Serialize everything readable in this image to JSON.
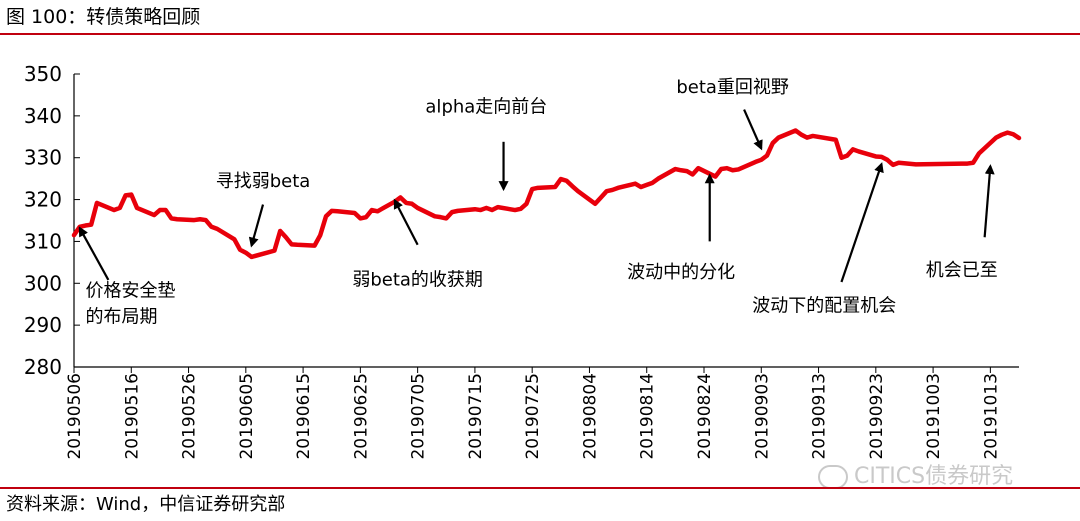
{
  "figure": {
    "title": "图 100：转债策略回顾",
    "source": "资料来源：Wind，中信证券研究部",
    "watermark": "CITICS债券研究"
  },
  "colors": {
    "line": "#e8000b",
    "rule": "#c0000f",
    "axis": "#000000"
  },
  "chart_data": {
    "type": "line",
    "title": "",
    "xlabel": "",
    "ylabel": "",
    "ylim": [
      280,
      350
    ],
    "yticks": [
      280,
      290,
      300,
      310,
      320,
      330,
      340,
      350
    ],
    "xtick_labels": [
      "20190506",
      "20190516",
      "20190526",
      "20190605",
      "20190615",
      "20190625",
      "20190705",
      "20190715",
      "20190725",
      "20190804",
      "20190814",
      "20190824",
      "20190903",
      "20190913",
      "20190923",
      "20191003",
      "20191013"
    ],
    "x_start": "2019-05-06",
    "x_end": "2019-10-18",
    "grid": false,
    "legend": "none",
    "series": [
      {
        "name": "",
        "points": [
          [
            "2019-05-06",
            311.5
          ],
          [
            "2019-05-07",
            313.5
          ],
          [
            "2019-05-08",
            313.8
          ],
          [
            "2019-05-09",
            314.0
          ],
          [
            "2019-05-10",
            319.2
          ],
          [
            "2019-05-13",
            317.5
          ],
          [
            "2019-05-14",
            318.0
          ],
          [
            "2019-05-15",
            321.0
          ],
          [
            "2019-05-16",
            321.2
          ],
          [
            "2019-05-17",
            318.0
          ],
          [
            "2019-05-20",
            316.3
          ],
          [
            "2019-05-21",
            317.5
          ],
          [
            "2019-05-22",
            317.5
          ],
          [
            "2019-05-23",
            315.5
          ],
          [
            "2019-05-24",
            315.3
          ],
          [
            "2019-05-27",
            315.1
          ],
          [
            "2019-05-28",
            315.3
          ],
          [
            "2019-05-29",
            315.1
          ],
          [
            "2019-05-30",
            313.5
          ],
          [
            "2019-05-31",
            313.0
          ],
          [
            "2019-06-03",
            310.5
          ],
          [
            "2019-06-04",
            308.0
          ],
          [
            "2019-06-05",
            307.3
          ],
          [
            "2019-06-06",
            306.3
          ],
          [
            "2019-06-10",
            307.8
          ],
          [
            "2019-06-11",
            312.5
          ],
          [
            "2019-06-12",
            311.0
          ],
          [
            "2019-06-13",
            309.3
          ],
          [
            "2019-06-14",
            309.2
          ],
          [
            "2019-06-17",
            309.0
          ],
          [
            "2019-06-18",
            311.5
          ],
          [
            "2019-06-19",
            316.0
          ],
          [
            "2019-06-20",
            317.3
          ],
          [
            "2019-06-21",
            317.2
          ],
          [
            "2019-06-24",
            316.8
          ],
          [
            "2019-06-25",
            315.5
          ],
          [
            "2019-06-26",
            315.8
          ],
          [
            "2019-06-27",
            317.5
          ],
          [
            "2019-06-28",
            317.2
          ],
          [
            "2019-07-01",
            319.5
          ],
          [
            "2019-07-02",
            320.5
          ],
          [
            "2019-07-03",
            319.2
          ],
          [
            "2019-07-04",
            319.0
          ],
          [
            "2019-07-05",
            318.0
          ],
          [
            "2019-07-08",
            316.0
          ],
          [
            "2019-07-09",
            315.8
          ],
          [
            "2019-07-10",
            315.5
          ],
          [
            "2019-07-11",
            317.0
          ],
          [
            "2019-07-12",
            317.3
          ],
          [
            "2019-07-15",
            317.7
          ],
          [
            "2019-07-16",
            317.5
          ],
          [
            "2019-07-17",
            318.0
          ],
          [
            "2019-07-18",
            317.5
          ],
          [
            "2019-07-19",
            318.2
          ],
          [
            "2019-07-22",
            317.5
          ],
          [
            "2019-07-23",
            317.8
          ],
          [
            "2019-07-24",
            319.0
          ],
          [
            "2019-07-25",
            322.5
          ],
          [
            "2019-07-26",
            322.8
          ],
          [
            "2019-07-29",
            323.0
          ],
          [
            "2019-07-30",
            324.9
          ],
          [
            "2019-07-31",
            324.5
          ],
          [
            "2019-08-01",
            323.2
          ],
          [
            "2019-08-02",
            322.0
          ],
          [
            "2019-08-05",
            319.0
          ],
          [
            "2019-08-06",
            320.5
          ],
          [
            "2019-08-07",
            322.0
          ],
          [
            "2019-08-08",
            322.3
          ],
          [
            "2019-08-09",
            322.8
          ],
          [
            "2019-08-12",
            323.8
          ],
          [
            "2019-08-13",
            323.0
          ],
          [
            "2019-08-14",
            323.5
          ],
          [
            "2019-08-15",
            324.0
          ],
          [
            "2019-08-16",
            325.0
          ],
          [
            "2019-08-19",
            327.3
          ],
          [
            "2019-08-20",
            327.0
          ],
          [
            "2019-08-21",
            326.8
          ],
          [
            "2019-08-22",
            326.0
          ],
          [
            "2019-08-23",
            327.5
          ],
          [
            "2019-08-26",
            325.5
          ],
          [
            "2019-08-27",
            327.3
          ],
          [
            "2019-08-28",
            327.5
          ],
          [
            "2019-08-29",
            327.0
          ],
          [
            "2019-08-30",
            327.2
          ],
          [
            "2019-09-02",
            329.0
          ],
          [
            "2019-09-03",
            329.5
          ],
          [
            "2019-09-04",
            330.5
          ],
          [
            "2019-09-05",
            333.5
          ],
          [
            "2019-09-06",
            334.8
          ],
          [
            "2019-09-09",
            336.5
          ],
          [
            "2019-09-10",
            335.5
          ],
          [
            "2019-09-11",
            334.8
          ],
          [
            "2019-09-12",
            335.2
          ],
          [
            "2019-09-16",
            334.3
          ],
          [
            "2019-09-17",
            330.0
          ],
          [
            "2019-09-18",
            330.5
          ],
          [
            "2019-09-19",
            332.0
          ],
          [
            "2019-09-20",
            331.5
          ],
          [
            "2019-09-23",
            330.3
          ],
          [
            "2019-09-24",
            330.2
          ],
          [
            "2019-09-25",
            329.5
          ],
          [
            "2019-09-26",
            328.3
          ],
          [
            "2019-09-27",
            328.8
          ],
          [
            "2019-09-30",
            328.4
          ],
          [
            "2019-10-08",
            328.6
          ],
          [
            "2019-10-09",
            328.6
          ],
          [
            "2019-10-10",
            328.8
          ],
          [
            "2019-10-11",
            331.0
          ],
          [
            "2019-10-14",
            334.8
          ],
          [
            "2019-10-15",
            335.5
          ],
          [
            "2019-10-16",
            336.0
          ],
          [
            "2019-10-17",
            335.6
          ],
          [
            "2019-10-18",
            334.7
          ]
        ]
      }
    ],
    "annotations": [
      {
        "lines": [
          "价格安全垫",
          "的布局期"
        ],
        "arrow_to": [
          "2019-05-07",
          313.2
        ],
        "arrow_from": [
          "2019-05-12",
          300.8
        ],
        "text_at": [
          "2019-05-08",
          296.8
        ],
        "anchor": "start"
      },
      {
        "lines": [
          "寻找弱beta"
        ],
        "arrow_to": [
          "2019-06-06",
          309.0
        ],
        "arrow_from": [
          "2019-06-08",
          318.8
        ],
        "text_at": [
          "2019-06-08",
          323.0
        ],
        "anchor": "middle"
      },
      {
        "lines": [
          "弱beta的收获期"
        ],
        "arrow_to": [
          "2019-07-01",
          319.8
        ],
        "arrow_from": [
          "2019-07-05",
          309.2
        ],
        "text_at": [
          "2019-07-05",
          299.5
        ],
        "anchor": "middle"
      },
      {
        "lines": [
          "alpha走向前台"
        ],
        "arrow_to": [
          "2019-07-20",
          322.5
        ],
        "arrow_from": [
          "2019-07-20",
          333.8
        ],
        "text_at": [
          "2019-07-17",
          340.8
        ],
        "anchor": "middle"
      },
      {
        "lines": [
          "beta重回视野"
        ],
        "arrow_to": [
          "2019-09-03",
          332.2
        ],
        "arrow_from": [
          "2019-08-31",
          341.5
        ],
        "text_at": [
          "2019-08-29",
          345.5
        ],
        "anchor": "middle"
      },
      {
        "lines": [
          "波动中的分化"
        ],
        "arrow_to": [
          "2019-08-25",
          325.8
        ],
        "arrow_from": [
          "2019-08-25",
          310.0
        ],
        "text_at": [
          "2019-08-20",
          301.3
        ],
        "anchor": "middle"
      },
      {
        "lines": [
          "波动下的配置机会"
        ],
        "arrow_to": [
          "2019-09-24",
          328.5
        ],
        "arrow_from": [
          "2019-09-17",
          300.3
        ],
        "text_at": [
          "2019-09-14",
          293.2
        ],
        "anchor": "middle"
      },
      {
        "lines": [
          "机会已至"
        ],
        "arrow_to": [
          "2019-10-13",
          328.0
        ],
        "arrow_from": [
          "2019-10-12",
          311.0
        ],
        "text_at": [
          "2019-10-08",
          301.8
        ],
        "anchor": "middle"
      }
    ]
  }
}
